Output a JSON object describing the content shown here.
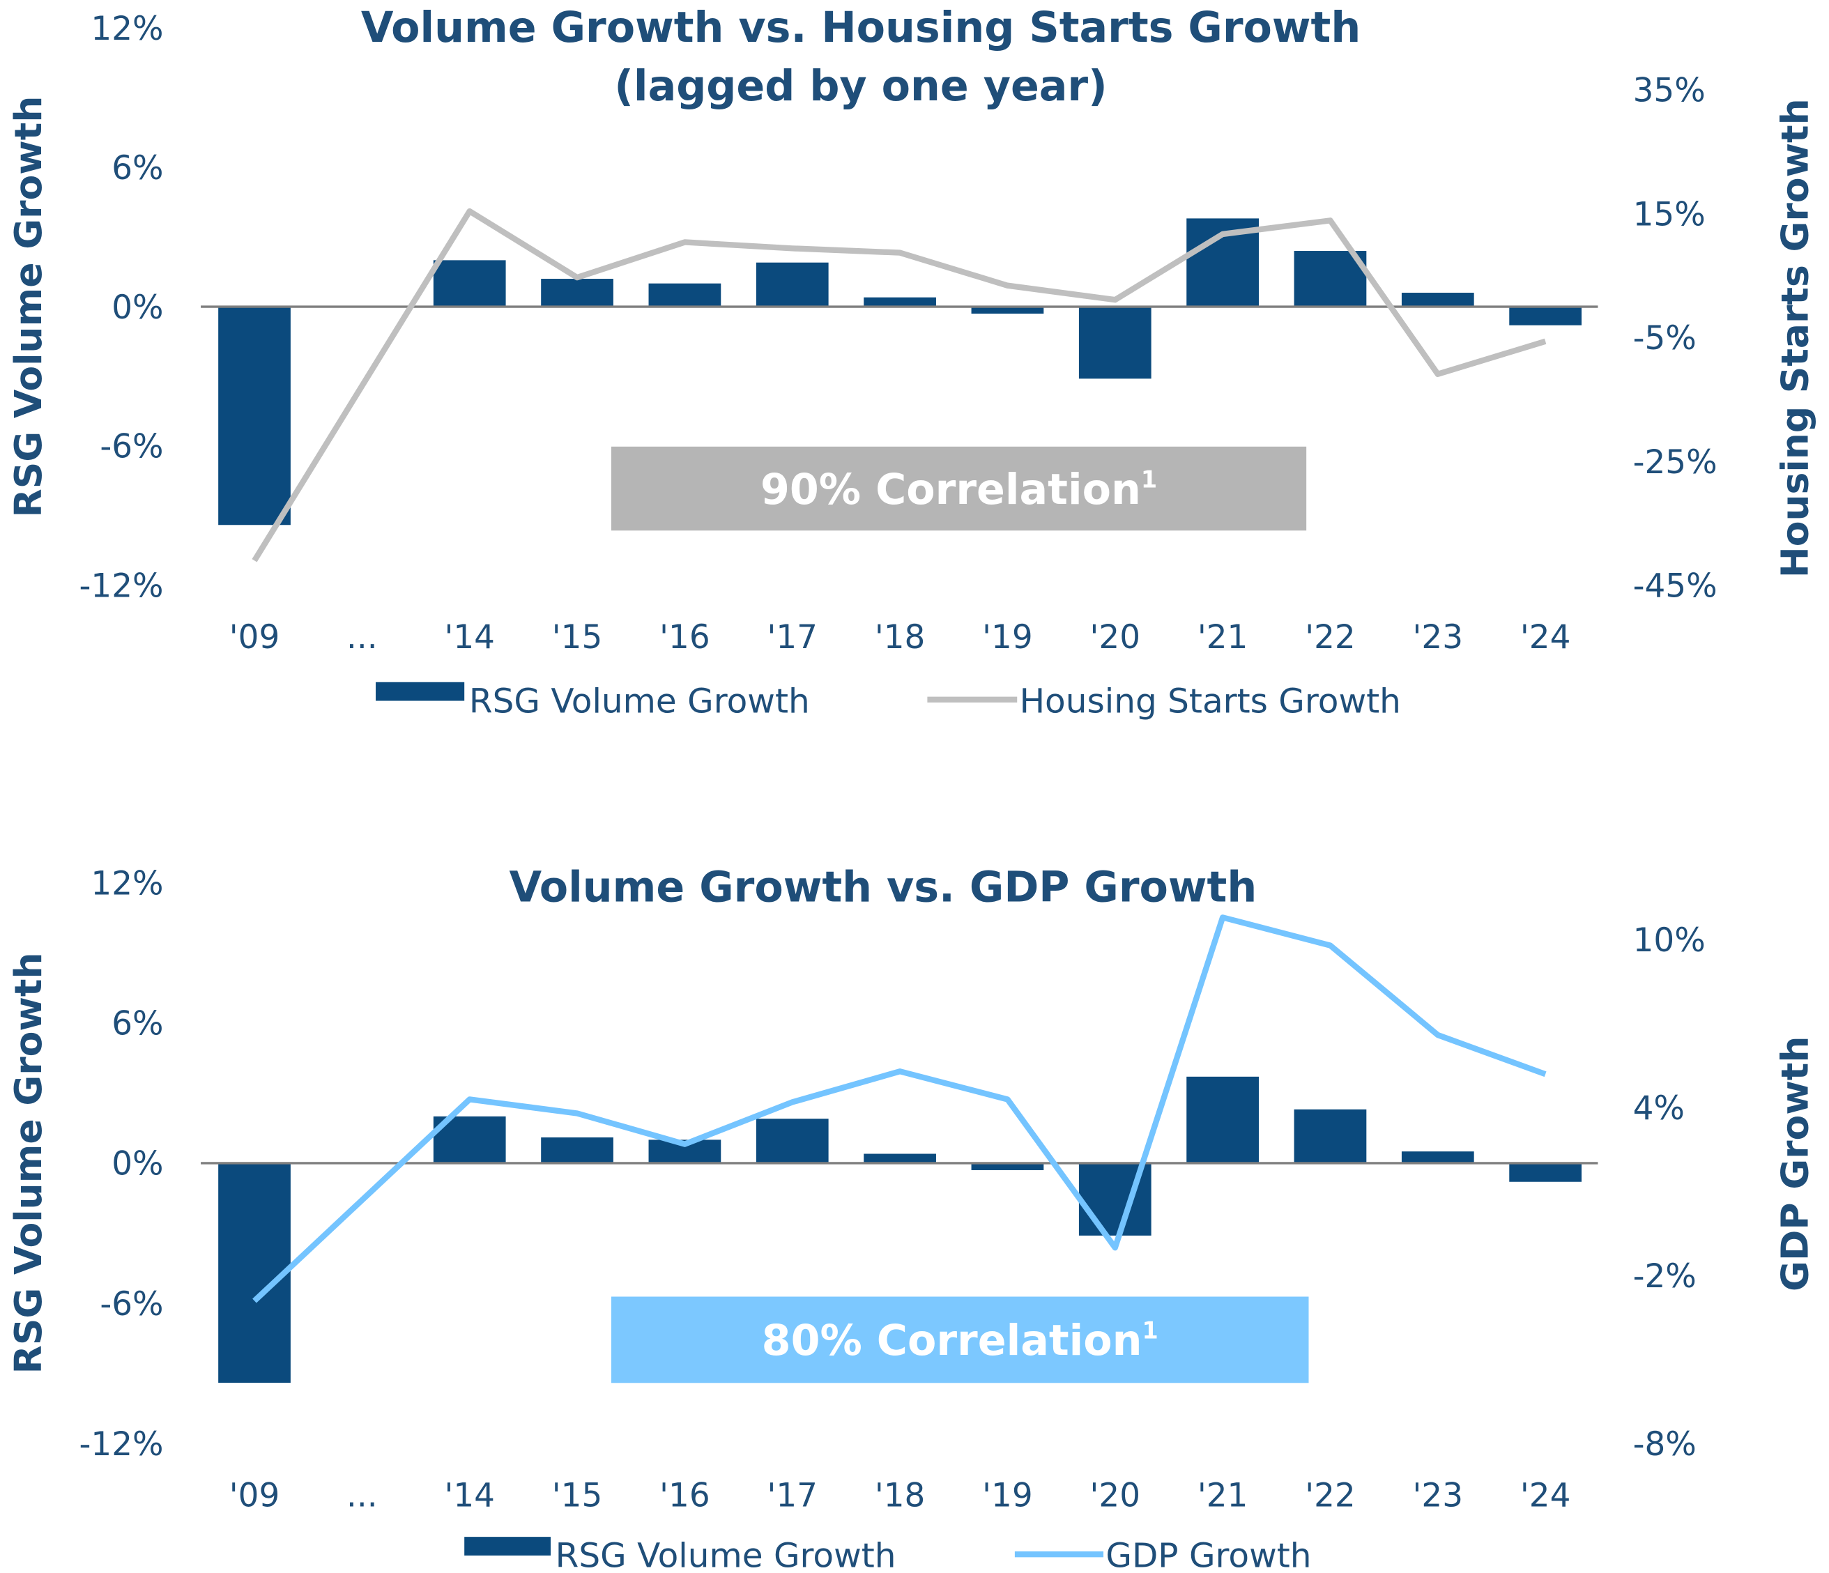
{
  "chart_data": [
    {
      "type": "bar+line",
      "title_line1": "Volume Growth vs. Housing Starts Growth",
      "title_line2": "(lagged by one year)",
      "categories": [
        "'09",
        "...",
        "'14",
        "'15",
        "'16",
        "'17",
        "'18",
        "'19",
        "'20",
        "'21",
        "'22",
        "'23",
        "'24"
      ],
      "ylabel": "RSG Volume Growth",
      "y2label": "Housing Starts Growth",
      "ylim": [
        -12,
        12
      ],
      "y_ticks": [
        "12%",
        "6%",
        "0%",
        "-6%",
        "-12%"
      ],
      "y2lim": [
        -45,
        35
      ],
      "y2_ticks": [
        "35%",
        "15%",
        "-5%",
        "-25%",
        "-45%"
      ],
      "series": [
        {
          "name": "RSG Volume Growth",
          "kind": "bar",
          "color": "#0B4A7D",
          "values": [
            -9.4,
            null,
            2.0,
            1.2,
            1.0,
            1.9,
            0.4,
            -0.3,
            -3.1,
            3.8,
            2.4,
            0.6,
            -0.8
          ]
        },
        {
          "name": "Housing Starts Growth",
          "kind": "line",
          "axis": "right",
          "color": "#BFBFBF",
          "values": [
            -41,
            null,
            15.4,
            4.7,
            10.4,
            9.4,
            8.7,
            3.4,
            1.1,
            11.7,
            13.9,
            -10.9,
            -5.6
          ]
        }
      ],
      "annotation": {
        "text": "90% Correlation",
        "sup": "1",
        "color": "#B5B5B5"
      },
      "legend": "bottom",
      "grid": false
    },
    {
      "type": "bar+line",
      "title_line1": "Volume Growth vs. GDP Growth",
      "title_line2": "",
      "categories": [
        "'09",
        "...",
        "'14",
        "'15",
        "'16",
        "'17",
        "'18",
        "'19",
        "'20",
        "'21",
        "'22",
        "'23",
        "'24"
      ],
      "ylabel": "RSG Volume Growth",
      "y2label": "GDP Growth",
      "ylim": [
        -12,
        12
      ],
      "y_ticks": [
        "12%",
        "6%",
        "0%",
        "-6%",
        "-12%"
      ],
      "y2lim": [
        -8,
        10
      ],
      "y2_ticks": [
        "10%",
        "4%",
        "-2%",
        "-8%"
      ],
      "series": [
        {
          "name": "RSG Volume Growth",
          "kind": "bar",
          "color": "#0B4A7D",
          "values": [
            -9.4,
            null,
            2.0,
            1.1,
            1.0,
            1.9,
            0.4,
            -0.3,
            -3.1,
            3.7,
            2.3,
            0.5,
            -0.8
          ]
        },
        {
          "name": "GDP Growth",
          "kind": "line",
          "axis": "right",
          "color": "#74C4FF",
          "values": [
            -2.9,
            null,
            4.3,
            3.8,
            2.7,
            4.2,
            5.3,
            4.3,
            -1.0,
            10.8,
            9.8,
            6.6,
            5.2
          ]
        }
      ],
      "annotation": {
        "text": "80% Correlation",
        "sup": "1",
        "color": "#7CC8FF"
      },
      "legend": "bottom",
      "grid": false
    }
  ]
}
